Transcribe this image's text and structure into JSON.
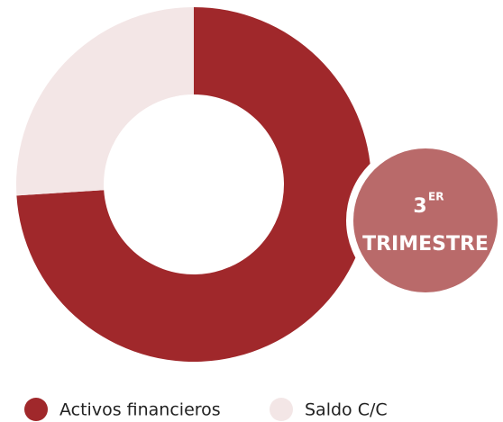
{
  "chart_data": {
    "type": "donut",
    "categories": [
      "Activos financieros",
      "Saldo C/C"
    ],
    "values": [
      74,
      26
    ],
    "colors": [
      "#a0282b",
      "#f3e6e6"
    ],
    "annotation": {
      "number": "3",
      "superscript": "ER",
      "text": "TRIMESTRE"
    },
    "annotation_color": "#b96a6a"
  }
}
